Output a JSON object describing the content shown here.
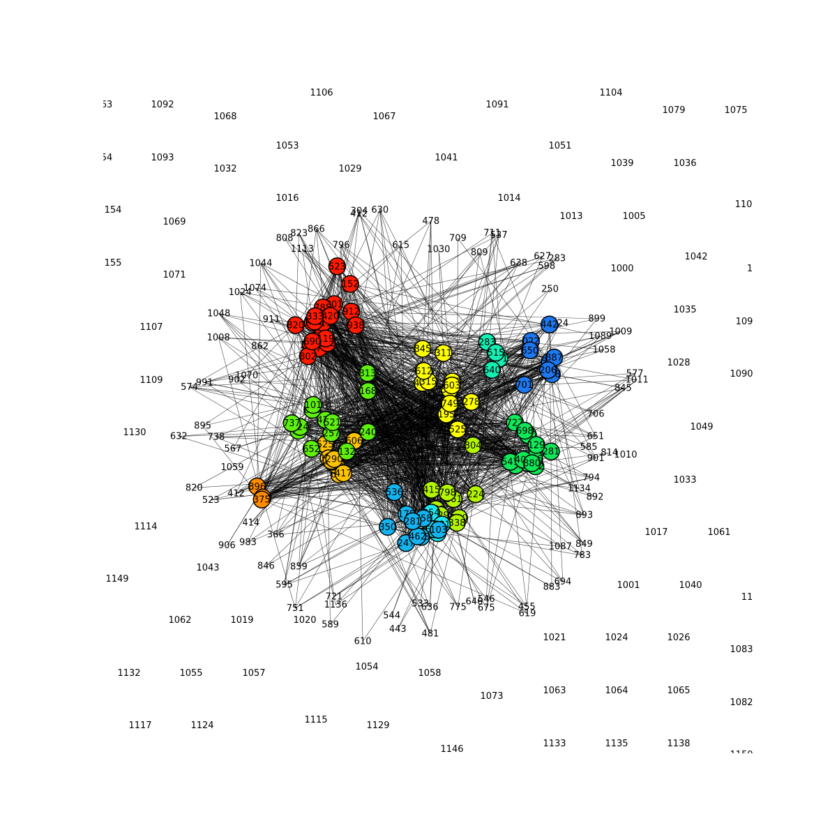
{
  "figure": {
    "type": "network-graph",
    "background": "#ffffff",
    "edge_color": "#000000",
    "node_outline": "#000000",
    "community_colors": [
      "#ff1a00",
      "#ff8c00",
      "#ffc400",
      "#ffff00",
      "#b4f500",
      "#5ff010",
      "#10e85a",
      "#14f0b4",
      "#1ee6f0",
      "#14b4f0",
      "#1e78f0"
    ]
  },
  "isolated_labels": [
    "1106",
    "1092",
    "1068",
    "1067",
    "1091",
    "1104",
    "1079",
    "1075",
    "1053",
    "1093",
    "1032",
    "1029",
    "1041",
    "1051",
    "1039",
    "1036",
    "1016",
    "1014",
    "1069",
    "1013",
    "1005",
    "1071",
    "1000",
    "1042",
    "1107",
    "1035",
    "1109",
    "1028",
    "1090",
    "1130",
    "1049",
    "1059",
    "1010",
    "1033",
    "1114",
    "1017",
    "1061",
    "1149",
    "1043",
    "1001",
    "1040",
    "1062",
    "1019",
    "1020",
    "1021",
    "1024",
    "1026",
    "1083",
    "1132",
    "1055",
    "1057",
    "1054",
    "1058",
    "1073",
    "1063",
    "1064",
    "1065",
    "1082",
    "1117",
    "1124",
    "1115",
    "1129",
    "1146",
    "1133",
    "1135",
    "1138",
    "1150",
    "154",
    "155",
    "63",
    "54",
    "110",
    "109",
    "11",
    "1"
  ],
  "peripheral_labels": [
    "585",
    "814",
    "901",
    "794",
    "1134",
    "892",
    "893",
    "783",
    "849",
    "1087",
    "694",
    "883",
    "455",
    "619",
    "675",
    "546",
    "646",
    "775",
    "481",
    "636",
    "533",
    "443",
    "544",
    "610",
    "589",
    "1136",
    "721",
    "751",
    "595",
    "859",
    "846",
    "366",
    "983",
    "906",
    "414",
    "523",
    "412",
    "820",
    "567",
    "738",
    "632",
    "895",
    "574",
    "991",
    "1070",
    "902",
    "1008",
    "862",
    "1048",
    "911",
    "1024",
    "1074",
    "1044",
    "808",
    "823",
    "1113",
    "866",
    "796",
    "304",
    "412",
    "630",
    "615",
    "478",
    "1030",
    "709",
    "809",
    "711",
    "537",
    "638",
    "627",
    "598",
    "283",
    "250",
    "124",
    "899",
    "1089",
    "1009",
    "1058",
    "577",
    "845",
    "1011",
    "706",
    "651"
  ],
  "nodes": [
    {
      "label": "1000",
      "c": 0
    },
    {
      "label": "585",
      "c": 0
    },
    {
      "label": "912",
      "c": 0
    },
    {
      "label": "301",
      "c": 0
    },
    {
      "label": "785",
      "c": 0
    },
    {
      "label": "477",
      "c": 0
    },
    {
      "label": "655",
      "c": 0
    },
    {
      "label": "820",
      "c": 0
    },
    {
      "label": "152",
      "c": 0
    },
    {
      "label": "311",
      "c": 0
    },
    {
      "label": "420",
      "c": 0
    },
    {
      "label": "715",
      "c": 0
    },
    {
      "label": "938",
      "c": 0
    },
    {
      "label": "268",
      "c": 0
    },
    {
      "label": "119",
      "c": 0
    },
    {
      "label": "421",
      "c": 0
    },
    {
      "label": "802",
      "c": 0
    },
    {
      "label": "523",
      "c": 0
    },
    {
      "label": "690",
      "c": 0
    },
    {
      "label": "333",
      "c": 0
    },
    {
      "label": "896",
      "c": 1
    },
    {
      "label": "660",
      "c": 1
    },
    {
      "label": "375",
      "c": 1
    },
    {
      "label": "621",
      "c": 2
    },
    {
      "label": "355",
      "c": 2
    },
    {
      "label": "473",
      "c": 2
    },
    {
      "label": "525",
      "c": 2
    },
    {
      "label": "136",
      "c": 2
    },
    {
      "label": "606",
      "c": 2
    },
    {
      "label": "251",
      "c": 2
    },
    {
      "label": "417",
      "c": 2
    },
    {
      "label": "290",
      "c": 2
    },
    {
      "label": "845",
      "c": 3
    },
    {
      "label": "525",
      "c": 3
    },
    {
      "label": "311",
      "c": 3
    },
    {
      "label": "432",
      "c": 3
    },
    {
      "label": "683",
      "c": 3
    },
    {
      "label": "195",
      "c": 3
    },
    {
      "label": "278",
      "c": 3
    },
    {
      "label": "555",
      "c": 3
    },
    {
      "label": "603",
      "c": 3
    },
    {
      "label": "749",
      "c": 3
    },
    {
      "label": "315",
      "c": 3
    },
    {
      "label": "612",
      "c": 3
    },
    {
      "label": "470",
      "c": 4
    },
    {
      "label": "224",
      "c": 4
    },
    {
      "label": "661",
      "c": 4
    },
    {
      "label": "190",
      "c": 4
    },
    {
      "label": "338",
      "c": 4
    },
    {
      "label": "415",
      "c": 4
    },
    {
      "label": "567",
      "c": 4
    },
    {
      "label": "804",
      "c": 4
    },
    {
      "label": "229",
      "c": 4
    },
    {
      "label": "798",
      "c": 4
    },
    {
      "label": "652",
      "c": 5
    },
    {
      "label": "257",
      "c": 5
    },
    {
      "label": "689",
      "c": 5
    },
    {
      "label": "426",
      "c": 5
    },
    {
      "label": "813",
      "c": 5
    },
    {
      "label": "427",
      "c": 5
    },
    {
      "label": "132",
      "c": 5
    },
    {
      "label": "240",
      "c": 5
    },
    {
      "label": "521",
      "c": 5
    },
    {
      "label": "168",
      "c": 5
    },
    {
      "label": "324",
      "c": 5
    },
    {
      "label": "737",
      "c": 5
    },
    {
      "label": "101",
      "c": 5
    },
    {
      "label": "620",
      "c": 6
    },
    {
      "label": "362",
      "c": 6
    },
    {
      "label": "144",
      "c": 6
    },
    {
      "label": "822",
      "c": 6
    },
    {
      "label": "727",
      "c": 6
    },
    {
      "label": "281",
      "c": 6
    },
    {
      "label": "541",
      "c": 6
    },
    {
      "label": "346",
      "c": 6
    },
    {
      "label": "698",
      "c": 6
    },
    {
      "label": "129",
      "c": 6
    },
    {
      "label": "401",
      "c": 6
    },
    {
      "label": "880",
      "c": 6
    },
    {
      "label": "283",
      "c": 7
    },
    {
      "label": "771",
      "c": 7
    },
    {
      "label": "515",
      "c": 7
    },
    {
      "label": "640",
      "c": 7
    },
    {
      "label": "387",
      "c": 8
    },
    {
      "label": "586",
      "c": 8
    },
    {
      "label": "254",
      "c": 8
    },
    {
      "label": "612",
      "c": 8
    },
    {
      "label": "731",
      "c": 8
    },
    {
      "label": "468",
      "c": 9
    },
    {
      "label": "103",
      "c": 9
    },
    {
      "label": "536",
      "c": 9
    },
    {
      "label": "247",
      "c": 9
    },
    {
      "label": "758",
      "c": 9
    },
    {
      "label": "462",
      "c": 9
    },
    {
      "label": "350",
      "c": 9
    },
    {
      "label": "175",
      "c": 9
    },
    {
      "label": "281",
      "c": 9
    },
    {
      "label": "022",
      "c": 10
    },
    {
      "label": "576",
      "c": 10
    },
    {
      "label": "887",
      "c": 10
    },
    {
      "label": "318",
      "c": 10
    },
    {
      "label": "442",
      "c": 10
    },
    {
      "label": "650",
      "c": 10
    },
    {
      "label": "206",
      "c": 10
    },
    {
      "label": "701",
      "c": 10
    }
  ]
}
